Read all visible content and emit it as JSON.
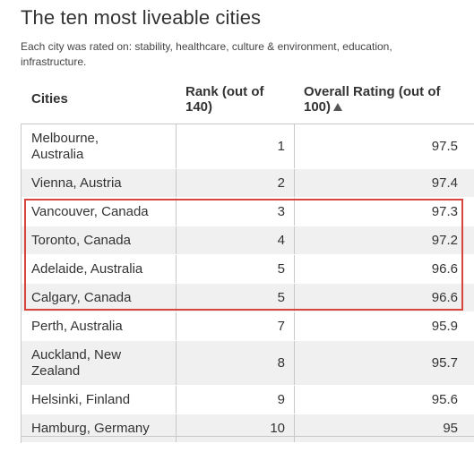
{
  "page": {
    "title": "The ten most liveable cities",
    "subtitle": "Each city was rated on: stability, healthcare, culture & environment, education, infrastructure."
  },
  "table": {
    "headers": {
      "city": "Cities",
      "rank": "Rank (out of 140)",
      "rating": "Overall Rating (out of 100)"
    },
    "rows": [
      {
        "city": "Melbourne, Australia",
        "rank": "1",
        "rating": "97.5"
      },
      {
        "city": "Vienna, Austria",
        "rank": "2",
        "rating": "97.4"
      },
      {
        "city": "Vancouver, Canada",
        "rank": "3",
        "rating": "97.3"
      },
      {
        "city": "Toronto, Canada",
        "rank": "4",
        "rating": "97.2"
      },
      {
        "city": "Adelaide, Australia",
        "rank": "5",
        "rating": "96.6"
      },
      {
        "city": "Calgary, Canada",
        "rank": "5",
        "rating": "96.6"
      },
      {
        "city": "Perth, Australia",
        "rank": "7",
        "rating": "95.9"
      },
      {
        "city": "Auckland, New Zealand",
        "rank": "8",
        "rating": "95.7"
      },
      {
        "city": "Helsinki, Finland",
        "rank": "9",
        "rating": "95.6"
      },
      {
        "city": "Hamburg, Germany",
        "rank": "10",
        "rating": "95"
      }
    ],
    "sort": {
      "column": "rating",
      "direction": "ascending",
      "icon": "sort-ascending-triangle-icon"
    },
    "highlight": {
      "rows": [
        "Vancouver, Canada",
        "Toronto, Canada",
        "Adelaide, Australia",
        "Calgary, Canada"
      ],
      "color": "#d9443f"
    }
  }
}
